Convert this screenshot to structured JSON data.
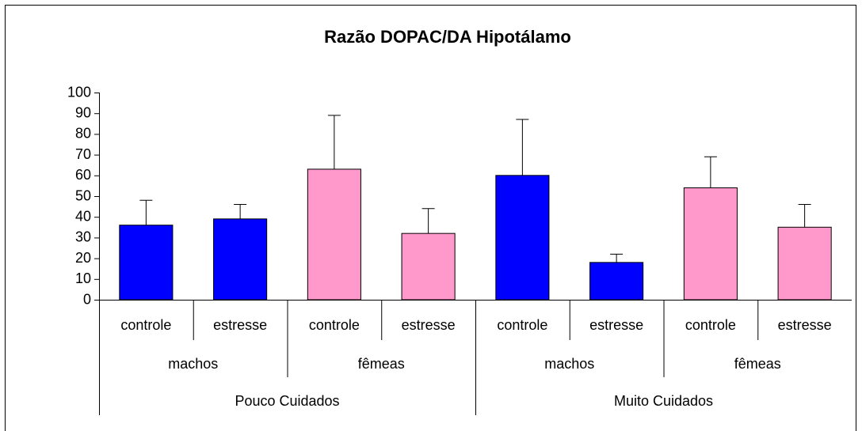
{
  "chart_data": {
    "type": "bar",
    "title": "Razão DOPAC/DA Hipotálamo",
    "categories": [
      "controle",
      "estresse",
      "controle",
      "estresse",
      "controle",
      "estresse",
      "controle",
      "estresse"
    ],
    "subgroups": [
      "machos",
      "fêmeas",
      "machos",
      "fêmeas"
    ],
    "groups": [
      "Pouco Cuidados",
      "Muito Cuidados"
    ],
    "values": [
      36,
      39,
      63,
      32,
      60,
      18,
      54,
      35
    ],
    "errors": [
      12,
      7,
      26,
      12,
      27,
      4,
      15,
      11
    ],
    "colors": [
      "#0000ff",
      "#0000ff",
      "#ff99cc",
      "#ff99cc",
      "#0000ff",
      "#0000ff",
      "#ff99cc",
      "#ff99cc"
    ],
    "ylim": [
      0,
      100
    ],
    "yticks": [
      0,
      10,
      20,
      30,
      40,
      50,
      60,
      70,
      80,
      90,
      100
    ]
  }
}
